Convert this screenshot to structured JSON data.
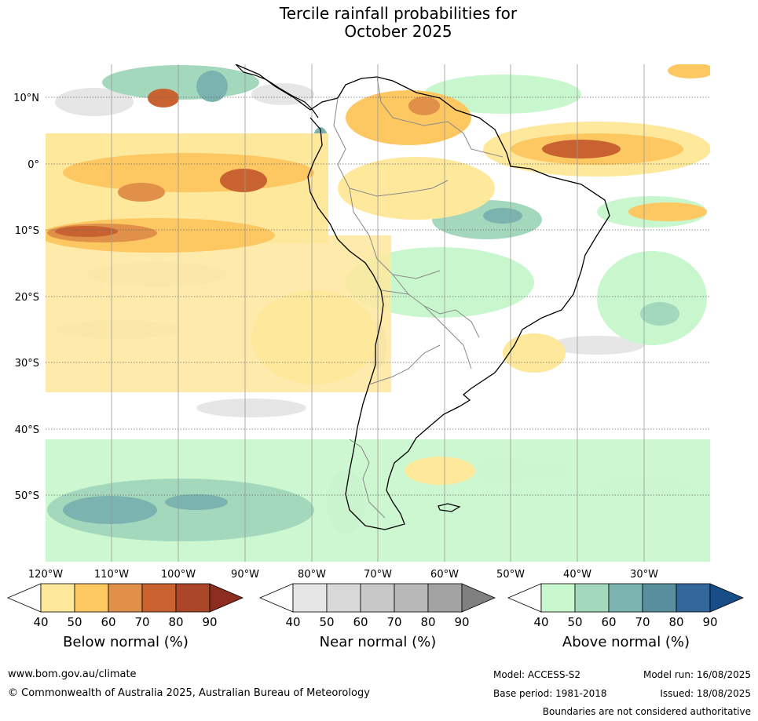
{
  "title": {
    "line1": "Tercile rainfall probabilities for",
    "line2": "October 2025"
  },
  "map": {
    "lon_labels": [
      "120°W",
      "110°W",
      "100°W",
      "90°W",
      "80°W",
      "70°W",
      "60°W",
      "50°W",
      "40°W",
      "30°W"
    ],
    "lat_labels": [
      "10°N",
      "0°",
      "10°S",
      "20°S",
      "30°S",
      "40°S",
      "50°S"
    ],
    "gridline_style": "dotted lat lines, solid grey lon lines"
  },
  "colorbars": {
    "below": {
      "title": "Below normal (%)",
      "ticks": [
        "40",
        "50",
        "60",
        "70",
        "80",
        "90"
      ],
      "colors": [
        "#ffffff",
        "#fee89c",
        "#fdc862",
        "#e09049",
        "#c96231",
        "#ab4527",
        "#8c2d1f"
      ]
    },
    "near": {
      "title": "Near normal (%)",
      "ticks": [
        "40",
        "50",
        "60",
        "70",
        "80",
        "90"
      ],
      "colors": [
        "#ffffff",
        "#e6e6e6",
        "#d8d8d8",
        "#c8c8c8",
        "#b7b7b7",
        "#a3a3a3",
        "#808080"
      ]
    },
    "above": {
      "title": "Above normal (%)",
      "ticks": [
        "40",
        "50",
        "60",
        "70",
        "80",
        "90"
      ],
      "colors": [
        "#ffffff",
        "#c9f7cd",
        "#a4d8bd",
        "#7ab3af",
        "#588f9c",
        "#33669a",
        "#174e88"
      ]
    }
  },
  "footer": {
    "website": "www.bom.gov.au/climate",
    "copyright": "© Commonwealth of Australia 2025, Australian Bureau of Meteorology",
    "model": "Model: ACCESS-S2",
    "base_period": "Base period: 1981-2018",
    "model_run": "Model run: 16/08/2025",
    "issued": "Issued: 18/08/2025",
    "disclaimer": "Boundaries are not considered authoritative"
  }
}
